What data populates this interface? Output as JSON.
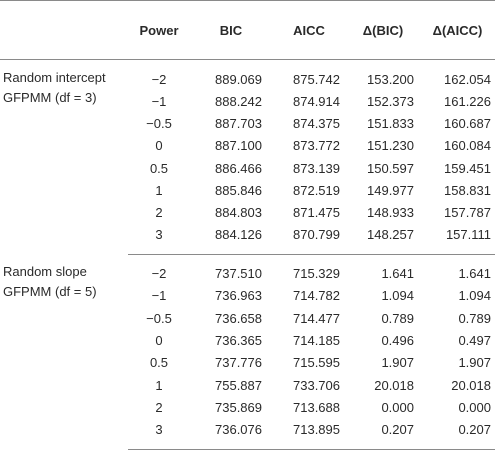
{
  "headers": {
    "model": "",
    "power": "Power",
    "bic": "BIC",
    "aicc": "AICC",
    "dbic": "Δ(BIC)",
    "daicc": "Δ(AICC)"
  },
  "groups": [
    {
      "label_line1": "Random intercept",
      "label_line2": "GFPMM (df = 3)",
      "rows": [
        {
          "power": "−2",
          "bic": "889.069",
          "aicc": "875.742",
          "dbic": "153.200",
          "daicc": "162.054"
        },
        {
          "power": "−1",
          "bic": "888.242",
          "aicc": "874.914",
          "dbic": "152.373",
          "daicc": "161.226"
        },
        {
          "power": "−0.5",
          "bic": "887.703",
          "aicc": "874.375",
          "dbic": "151.833",
          "daicc": "160.687"
        },
        {
          "power": "0",
          "bic": "887.100",
          "aicc": "873.772",
          "dbic": "151.230",
          "daicc": "160.084"
        },
        {
          "power": "0.5",
          "bic": "886.466",
          "aicc": "873.139",
          "dbic": "150.597",
          "daicc": "159.451"
        },
        {
          "power": "1",
          "bic": "885.846",
          "aicc": "872.519",
          "dbic": "149.977",
          "daicc": "158.831"
        },
        {
          "power": "2",
          "bic": "884.803",
          "aicc": "871.475",
          "dbic": "148.933",
          "daicc": "157.787"
        },
        {
          "power": "3",
          "bic": "884.126",
          "aicc": "870.799",
          "dbic": "148.257",
          "daicc": "157.111"
        }
      ]
    },
    {
      "label_line1": "Random slope",
      "label_line2": "GFPMM (df = 5)",
      "rows": [
        {
          "power": "−2",
          "bic": "737.510",
          "aicc": "715.329",
          "dbic": "1.641",
          "daicc": "1.641"
        },
        {
          "power": "−1",
          "bic": "736.963",
          "aicc": "714.782",
          "dbic": "1.094",
          "daicc": "1.094"
        },
        {
          "power": "−0.5",
          "bic": "736.658",
          "aicc": "714.477",
          "dbic": "0.789",
          "daicc": "0.789"
        },
        {
          "power": "0",
          "bic": "736.365",
          "aicc": "714.185",
          "dbic": "0.496",
          "daicc": "0.497"
        },
        {
          "power": "0.5",
          "bic": "737.776",
          "aicc": "715.595",
          "dbic": "1.907",
          "daicc": "1.907"
        },
        {
          "power": "1",
          "bic": "755.887",
          "aicc": "733.706",
          "dbic": "20.018",
          "daicc": "20.018"
        },
        {
          "power": "2",
          "bic": "735.869",
          "aicc": "713.688",
          "dbic": "0.000",
          "daicc": "0.000"
        },
        {
          "power": "3",
          "bic": "736.076",
          "aicc": "713.895",
          "dbic": "0.207",
          "daicc": "0.207"
        }
      ]
    }
  ]
}
